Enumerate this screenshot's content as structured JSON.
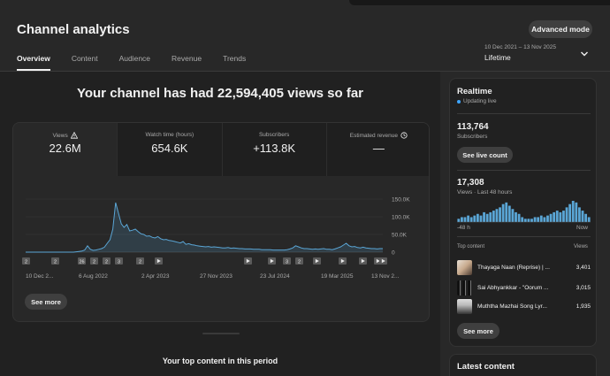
{
  "header": {
    "title": "Channel analytics",
    "advanced_mode": "Advanced mode",
    "date_range": "10 Dec 2021 – 13 Nov 2025",
    "period": "Lifetime"
  },
  "tabs": [
    {
      "label": "Overview",
      "active": true
    },
    {
      "label": "Content"
    },
    {
      "label": "Audience"
    },
    {
      "label": "Revenue"
    },
    {
      "label": "Trends"
    }
  ],
  "main": {
    "headline": "Your channel has had 22,594,405 views so far",
    "metrics": [
      {
        "label": "Views",
        "value": "22.6M",
        "icon": "warning-icon"
      },
      {
        "label": "Watch time (hours)",
        "value": "654.6K"
      },
      {
        "label": "Subscribers",
        "value": "+113.8K"
      },
      {
        "label": "Estimated revenue",
        "value": "—",
        "icon": "clock-icon"
      }
    ],
    "see_more": "See more",
    "top_content_title": "Your top content in this period"
  },
  "chart_data": {
    "type": "line",
    "series": [
      {
        "values": [
          0,
          0,
          0,
          0,
          0,
          0,
          0,
          0,
          0,
          0,
          0,
          0,
          0,
          0,
          0,
          0,
          0,
          0,
          1,
          2,
          3,
          6,
          18,
          8,
          5,
          6,
          8,
          10,
          14,
          25,
          35,
          65,
          140,
          110,
          80,
          70,
          78,
          60,
          62,
          65,
          58,
          52,
          50,
          45,
          46,
          42,
          40,
          44,
          38,
          35,
          36,
          33,
          32,
          30,
          28,
          26,
          30,
          22,
          24,
          21,
          20,
          18,
          17,
          16,
          15,
          16,
          14,
          15,
          14,
          13,
          12,
          12,
          13,
          11,
          12,
          11,
          10,
          10,
          9,
          9,
          9,
          8,
          8,
          8,
          7,
          7,
          7,
          7,
          6,
          6,
          6,
          6,
          6,
          7,
          9,
          12,
          18,
          15,
          12,
          10,
          10,
          9,
          8,
          9,
          8,
          9,
          10,
          8,
          8,
          7,
          9,
          12,
          15,
          20,
          25,
          18,
          15,
          16,
          13,
          12,
          14,
          12,
          11,
          10,
          10,
          9,
          10,
          10
        ]
      }
    ],
    "y_ticks": [
      "150.0K",
      "100.0K",
      "50.0K",
      "0"
    ],
    "ylim": [
      0,
      150000
    ],
    "x_ticks": [
      "10 Dec 2...",
      "6 Aug 2022",
      "2 Apr 2023",
      "27 Nov 2023",
      "23 Jul 2024",
      "19 Mar 2025",
      "13 Nov 2..."
    ],
    "markers": [
      {
        "label": "2",
        "type": "number"
      },
      {
        "label": "2",
        "type": "number"
      },
      {
        "label": "26",
        "type": "number"
      },
      {
        "label": "2",
        "type": "number"
      },
      {
        "label": "2",
        "type": "number"
      },
      {
        "label": "3",
        "type": "number"
      },
      {
        "label": "2",
        "type": "number"
      },
      {
        "label": "",
        "type": "play"
      },
      {
        "label": "",
        "type": "play"
      },
      {
        "label": "",
        "type": "play"
      },
      {
        "label": "3",
        "type": "number"
      },
      {
        "label": "2",
        "type": "number"
      },
      {
        "label": "",
        "type": "play"
      },
      {
        "label": "",
        "type": "play"
      },
      {
        "label": "",
        "type": "play"
      },
      {
        "label": "",
        "type": "play"
      },
      {
        "label": "",
        "type": "play"
      }
    ]
  },
  "realtime": {
    "title": "Realtime",
    "status": "Updating live",
    "subscribers_value": "113,764",
    "subscribers_label": "Subscribers",
    "live_count_button": "See live count",
    "views_value": "17,308",
    "views_label": "Views · Last 48 hours",
    "spark_left": "-48 h",
    "spark_right": "Now",
    "spark_values": [
      2,
      3,
      3,
      4,
      3,
      4,
      5,
      4,
      6,
      5,
      6,
      7,
      8,
      9,
      11,
      12,
      10,
      8,
      6,
      5,
      3,
      2,
      2,
      2,
      3,
      3,
      4,
      3,
      4,
      5,
      6,
      7,
      6,
      7,
      9,
      11,
      13,
      12,
      9,
      7,
      5,
      3
    ],
    "top_content_label": "Top content",
    "views_col": "Views",
    "items": [
      {
        "title": "Thayaga Naan (Reprise) | ...",
        "views": "3,401"
      },
      {
        "title": "Sai Abhyankkar - \"Oorum ...",
        "views": "3,015"
      },
      {
        "title": "Muththa Mazhai Song Lyr...",
        "views": "1,935"
      }
    ],
    "see_more": "See more"
  },
  "latest": {
    "title": "Latest content"
  },
  "colors": {
    "accent": "#3ea6ff",
    "line": "#5aa6d6"
  }
}
